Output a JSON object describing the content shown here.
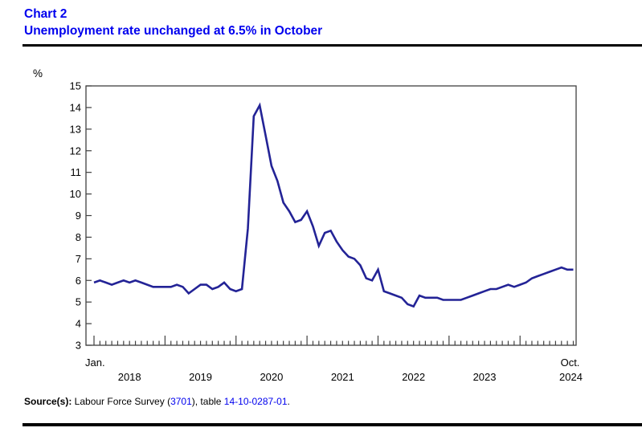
{
  "page": {
    "chart_label": "Chart 2",
    "title": "Unemployment rate unchanged at 6.5% in October"
  },
  "chart_data": {
    "type": "line",
    "title": "Chart 2",
    "subtitle": "Unemployment rate unchanged at 6.5% in October",
    "ylabel": "%",
    "ylim": [
      3,
      15
    ],
    "yticks": [
      3,
      4,
      5,
      6,
      7,
      8,
      9,
      10,
      11,
      12,
      13,
      14,
      15
    ],
    "x_frequency": "monthly",
    "x_start_label": "Jan.",
    "x_end_label": "Oct.",
    "years": [
      "2018",
      "2019",
      "2020",
      "2021",
      "2022",
      "2023",
      "2024"
    ],
    "grid": false,
    "legend": "none",
    "series": [
      {
        "name": "Unemployment rate (%), Jan. 2018 to Oct. 2024",
        "color": "#232396",
        "values": [
          5.9,
          6.0,
          5.9,
          5.8,
          5.9,
          6.0,
          5.9,
          6.0,
          5.9,
          5.8,
          5.7,
          5.7,
          5.7,
          5.7,
          5.8,
          5.7,
          5.4,
          5.6,
          5.8,
          5.8,
          5.6,
          5.7,
          5.9,
          5.6,
          5.5,
          5.6,
          8.4,
          13.6,
          14.1,
          12.7,
          11.3,
          10.6,
          9.6,
          9.2,
          8.7,
          8.8,
          9.2,
          8.5,
          7.6,
          8.2,
          8.3,
          7.8,
          7.4,
          7.1,
          7.0,
          6.7,
          6.1,
          6.0,
          6.5,
          5.5,
          5.4,
          5.3,
          5.2,
          4.9,
          4.8,
          5.3,
          5.2,
          5.2,
          5.2,
          5.1,
          5.1,
          5.1,
          5.1,
          5.2,
          5.3,
          5.4,
          5.5,
          5.6,
          5.6,
          5.7,
          5.8,
          5.7,
          5.8,
          5.9,
          6.1,
          6.2,
          6.3,
          6.4,
          6.5,
          6.6,
          6.5,
          6.5
        ]
      }
    ]
  },
  "footer": {
    "source_label": "Source(s):",
    "source_text_1": " Labour Force Survey (",
    "source_link_1": "3701",
    "source_text_2": "), table ",
    "source_link_2": "14-10-0287-01",
    "source_text_3": "."
  },
  "colors": {
    "title_blue": "#0000EE",
    "link_blue": "#0000EE",
    "line_navy": "#232396",
    "rule_black": "#000000",
    "axis_gray": "#404040"
  }
}
